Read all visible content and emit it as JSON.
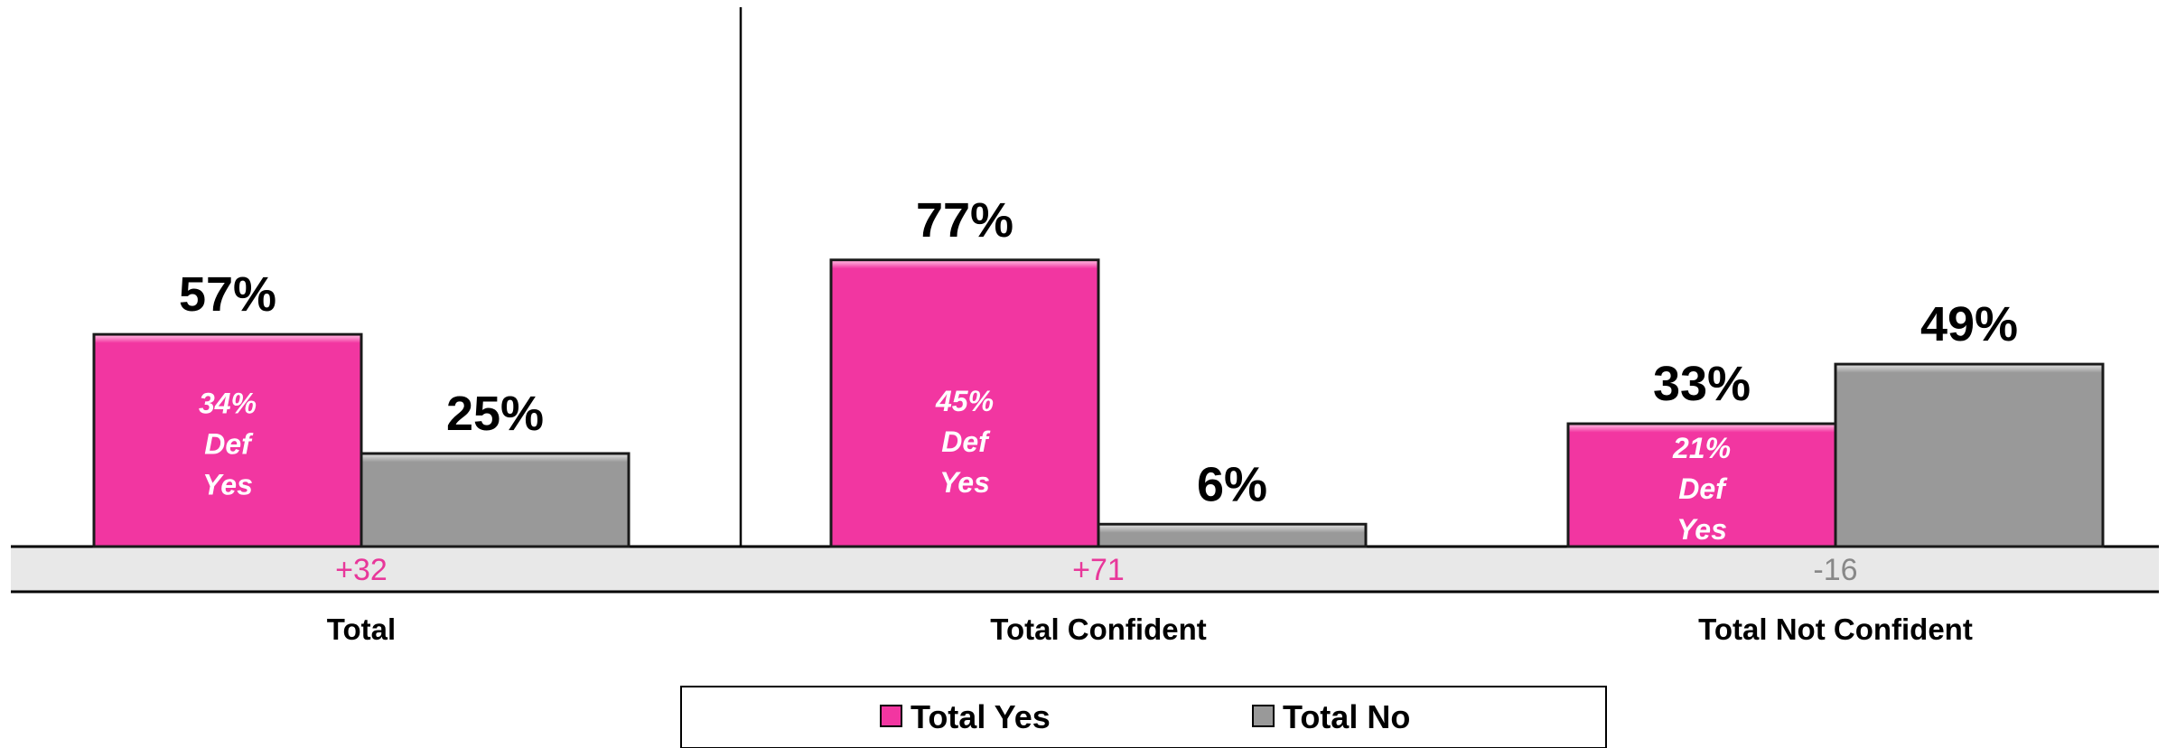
{
  "chart_data": {
    "type": "bar",
    "categories": [
      "Total",
      "Total Confident",
      "Total Not Confident"
    ],
    "series": [
      {
        "name": "Total Yes",
        "color": "#f236a1",
        "values": [
          57,
          77,
          33
        ]
      },
      {
        "name": "Total No",
        "color": "#999999",
        "values": [
          25,
          6,
          49
        ]
      }
    ],
    "value_labels": {
      "Total Yes": [
        "57%",
        "77%",
        "33%"
      ],
      "Total No": [
        "25%",
        "6%",
        "49%"
      ]
    },
    "def_yes": [
      {
        "pct": "34%",
        "line2": "Def",
        "line3": "Yes"
      },
      {
        "pct": "45%",
        "line2": "Def",
        "line3": "Yes"
      },
      {
        "pct": "21%",
        "line2": "Def",
        "line3": "Yes"
      }
    ],
    "net_diff": [
      "+32",
      "+71",
      "-16"
    ],
    "net_diff_colors": [
      "#e8379a",
      "#e8379a",
      "#888888"
    ],
    "ylim": [
      0,
      105
    ],
    "legend_position": "bottom",
    "grid": false
  }
}
